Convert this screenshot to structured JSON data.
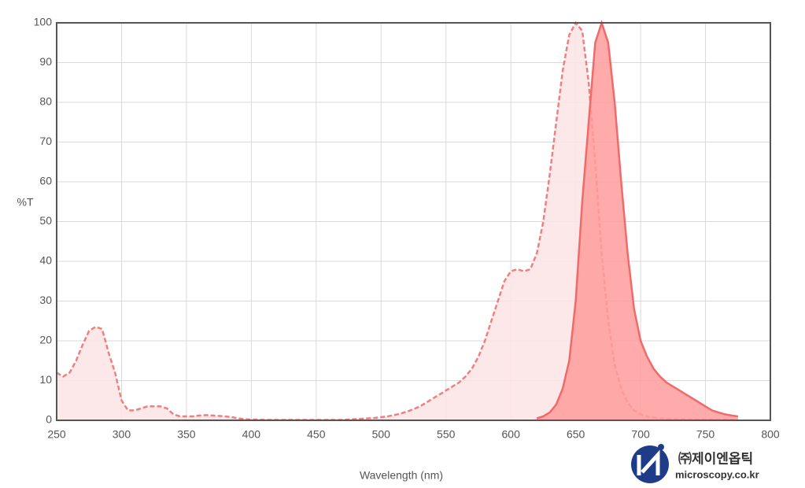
{
  "chart_data": {
    "type": "area",
    "xlabel": "Wavelength (nm)",
    "ylabel": "%T",
    "x": [
      250,
      255,
      260,
      265,
      270,
      275,
      280,
      285,
      290,
      295,
      300,
      305,
      310,
      315,
      320,
      325,
      330,
      335,
      340,
      345,
      350,
      355,
      360,
      365,
      370,
      375,
      380,
      385,
      390,
      395,
      400,
      405,
      410,
      415,
      420,
      425,
      430,
      435,
      440,
      445,
      450,
      455,
      460,
      465,
      470,
      475,
      480,
      485,
      490,
      495,
      500,
      505,
      510,
      515,
      520,
      525,
      530,
      535,
      540,
      545,
      550,
      555,
      560,
      565,
      570,
      575,
      580,
      585,
      590,
      595,
      600,
      605,
      610,
      615,
      620,
      625,
      630,
      635,
      640,
      645,
      650,
      655,
      660,
      665,
      670,
      675,
      680,
      685,
      690,
      695,
      700,
      705,
      710,
      715,
      720,
      725,
      730,
      735,
      740,
      745,
      750,
      755,
      760,
      765,
      770,
      775
    ],
    "series": [
      {
        "color": "#f08080",
        "fill": "#fde4e5",
        "dashed": true,
        "values": [
          12,
          11,
          12,
          15,
          19,
          22.5,
          23.5,
          23,
          17,
          12,
          5,
          2.5,
          2.5,
          3,
          3.5,
          3.5,
          3.5,
          3,
          1.5,
          1,
          1,
          1,
          1.2,
          1.3,
          1.2,
          1.1,
          1,
          0.8,
          0.5,
          0.3,
          0.2,
          0.2,
          0.1,
          0.1,
          0.1,
          0.1,
          0.1,
          0.1,
          0.1,
          0.1,
          0.1,
          0.1,
          0.1,
          0.1,
          0.1,
          0.2,
          0.3,
          0.4,
          0.5,
          0.6,
          0.8,
          1,
          1.3,
          1.7,
          2.2,
          2.8,
          3.5,
          4.5,
          5.5,
          6.5,
          7.5,
          8.5,
          9.5,
          11,
          13,
          16,
          20,
          25,
          30,
          35,
          37.5,
          38,
          37.5,
          38,
          42,
          50,
          62,
          75,
          88,
          97,
          100,
          98,
          85,
          65,
          42,
          25,
          14,
          8,
          4.5,
          2.5,
          1.5,
          1,
          0.7,
          0.5,
          0.4,
          0.3,
          0.3,
          0.3,
          0.2,
          0.2,
          0.2,
          0.2,
          0.2,
          0.2,
          0.2,
          0.2
        ]
      },
      {
        "color": "#f06a6a",
        "fill": "#ff9c9c",
        "dashed": false,
        "values": [
          null,
          null,
          null,
          null,
          null,
          null,
          null,
          null,
          null,
          null,
          null,
          null,
          null,
          null,
          null,
          null,
          null,
          null,
          null,
          null,
          null,
          null,
          null,
          null,
          null,
          null,
          null,
          null,
          null,
          null,
          null,
          null,
          null,
          null,
          null,
          null,
          null,
          null,
          null,
          null,
          null,
          null,
          null,
          null,
          null,
          null,
          null,
          null,
          null,
          null,
          null,
          null,
          null,
          null,
          null,
          null,
          null,
          null,
          null,
          null,
          null,
          null,
          null,
          null,
          null,
          null,
          null,
          null,
          null,
          null,
          null,
          null,
          null,
          null,
          0.5,
          1,
          2,
          4,
          8,
          15,
          30,
          55,
          75,
          95,
          100,
          95,
          80,
          60,
          42,
          28,
          20,
          16,
          13,
          11,
          9.5,
          8.5,
          7.5,
          6.5,
          5.5,
          4.5,
          3.5,
          2.5,
          2,
          1.5,
          1.2,
          1
        ]
      }
    ],
    "xlim": [
      250,
      800
    ],
    "xticks": [
      250,
      300,
      350,
      400,
      450,
      500,
      550,
      600,
      650,
      700,
      750,
      800
    ],
    "ylim": [
      0,
      100
    ],
    "yticks": [
      0,
      10,
      20,
      30,
      40,
      50,
      60,
      70,
      80,
      90,
      100
    ],
    "grid": true
  },
  "logo": {
    "name": "㈜제이엔옵틱",
    "url": "microscopy.co.kr"
  }
}
